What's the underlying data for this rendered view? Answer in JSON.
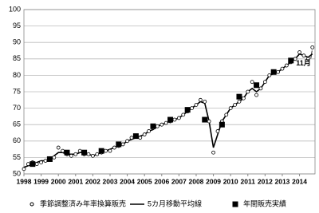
{
  "chart_data": {
    "type": "line",
    "xlim": [
      1998,
      2014.9
    ],
    "xticks": [
      1998,
      1999,
      2000,
      2001,
      2002,
      2003,
      2004,
      2005,
      2006,
      2007,
      2008,
      2009,
      2010,
      2011,
      2012,
      2013,
      2014
    ],
    "ylim": [
      50,
      100
    ],
    "yticks": [
      50,
      55,
      60,
      65,
      70,
      75,
      80,
      85,
      90,
      95,
      100
    ],
    "grid": true,
    "annotation": "11月",
    "series": [
      {
        "name": "季節調整済み年率換算販売",
        "style": "circle",
        "color": "#000000",
        "x": [
          1998,
          1998.25,
          1998.5,
          1998.75,
          1999,
          1999.25,
          1999.5,
          1999.75,
          2000,
          2000.25,
          2000.5,
          2000.75,
          2001,
          2001.25,
          2001.5,
          2001.75,
          2002,
          2002.25,
          2002.5,
          2002.75,
          2003,
          2003.25,
          2003.5,
          2003.75,
          2004,
          2004.25,
          2004.5,
          2004.75,
          2005,
          2005.25,
          2005.5,
          2005.75,
          2006,
          2006.25,
          2006.5,
          2006.75,
          2007,
          2007.25,
          2007.5,
          2007.75,
          2008,
          2008.25,
          2008.5,
          2008.75,
          2009,
          2009.25,
          2009.5,
          2009.75,
          2010,
          2010.25,
          2010.5,
          2010.75,
          2011,
          2011.25,
          2011.5,
          2011.75,
          2012,
          2012.25,
          2012.5,
          2012.75,
          2013,
          2013.25,
          2013.5,
          2013.75,
          2014,
          2014.25,
          2014.5,
          2014.75
        ],
        "values": [
          51.5,
          53,
          53.5,
          53,
          53.5,
          54,
          54.5,
          55,
          58,
          57,
          56,
          55.5,
          56,
          57,
          56,
          56,
          55.5,
          56,
          56.5,
          57,
          57,
          58,
          58.5,
          59,
          60,
          61,
          61.5,
          61,
          62,
          63,
          64,
          64.5,
          65,
          65.5,
          66,
          66.5,
          67,
          68,
          69,
          70,
          71,
          72.5,
          72,
          66,
          56.5,
          63,
          66,
          68,
          70,
          71,
          72,
          73,
          75,
          78,
          74,
          76,
          78,
          80,
          81,
          81,
          82,
          83,
          84,
          85,
          87,
          86,
          85,
          88.5
        ]
      },
      {
        "name": "5カ月移動平均線",
        "style": "line",
        "color": "#000000",
        "x": [
          1998,
          1998.25,
          1998.5,
          1998.75,
          1999,
          1999.25,
          1999.5,
          1999.75,
          2000,
          2000.25,
          2000.5,
          2000.75,
          2001,
          2001.25,
          2001.5,
          2001.75,
          2002,
          2002.25,
          2002.5,
          2002.75,
          2003,
          2003.25,
          2003.5,
          2003.75,
          2004,
          2004.25,
          2004.5,
          2004.75,
          2005,
          2005.25,
          2005.5,
          2005.75,
          2006,
          2006.25,
          2006.5,
          2006.75,
          2007,
          2007.25,
          2007.5,
          2007.75,
          2008,
          2008.25,
          2008.5,
          2008.75,
          2009,
          2009.25,
          2009.5,
          2009.75,
          2010,
          2010.25,
          2010.5,
          2010.75,
          2011,
          2011.25,
          2011.5,
          2011.75,
          2012,
          2012.25,
          2012.5,
          2012.75,
          2013,
          2013.25,
          2013.5,
          2013.75,
          2014,
          2014.25,
          2014.5,
          2014.75
        ],
        "values": [
          52,
          52.5,
          53,
          53.5,
          54,
          54,
          54.5,
          55.5,
          56.5,
          56.5,
          56,
          56,
          56,
          56.5,
          56.5,
          56,
          55.5,
          56,
          56.5,
          57,
          57.5,
          58,
          58.5,
          59,
          60,
          60.5,
          61,
          61.5,
          62,
          63,
          63.5,
          64.5,
          65,
          65.5,
          66,
          66.5,
          67,
          68,
          69,
          70,
          71,
          72,
          71.5,
          66,
          58,
          62,
          66,
          68,
          70,
          71,
          72,
          73,
          75,
          76,
          75,
          76,
          78,
          80,
          80.5,
          81,
          82,
          83,
          84,
          85,
          86.5,
          86,
          85.5,
          86.5
        ]
      },
      {
        "name": "年間販売実績",
        "style": "square",
        "color": "#000000",
        "x": [
          1998.5,
          1999.5,
          2000.5,
          2001.5,
          2002.5,
          2003.5,
          2004.5,
          2005.5,
          2006.5,
          2007.5,
          2008.5,
          2009.5,
          2010.5,
          2011.5,
          2012.5,
          2013.5
        ],
        "values": [
          53,
          54.5,
          56.5,
          56.5,
          57,
          59,
          61.5,
          64.5,
          66.5,
          69.5,
          66.5,
          65,
          73.5,
          77,
          81,
          84.5
        ]
      }
    ]
  }
}
